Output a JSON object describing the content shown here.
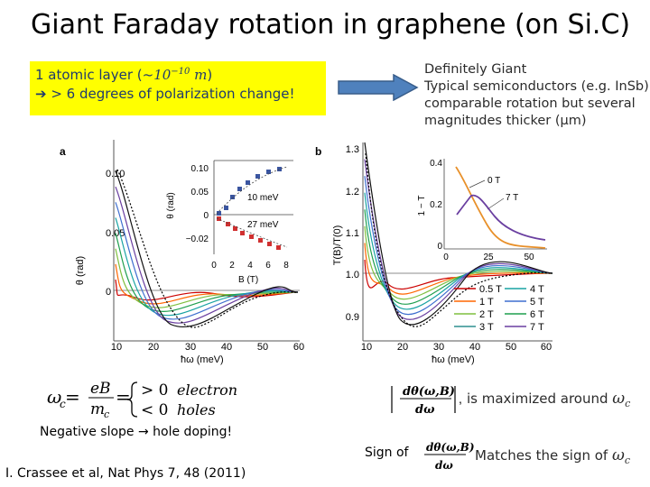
{
  "title": "Giant Faraday rotation in graphene (on Si.C)",
  "highlight": {
    "line1_prefix": "1 atomic layer (~",
    "line1_math": "10",
    "line1_exp": "−10",
    "line1_unit": " m",
    "line1_suffix": ")",
    "line2": "> 6 degrees of polarization change!"
  },
  "note_lines": [
    "Definitely Giant",
    "Typical semiconductors (e.g. InSb)",
    "comparable rotation but several",
    "magnitudes thicker (μm)"
  ],
  "panel_a": {
    "label": "a",
    "ylabel": "θ (rad)",
    "xlabel": "ħω (meV)",
    "yticks": [
      "0.10",
      "0.05",
      "0"
    ],
    "xticks": [
      "10",
      "20",
      "30",
      "40",
      "50",
      "60"
    ],
    "inset": {
      "ylabel": "θ (rad)",
      "xlabel": "B (T)",
      "yticks": [
        "0.10",
        "0.05",
        "0",
        "−0.02"
      ],
      "xticks": [
        "0",
        "2",
        "4",
        "6",
        "8"
      ],
      "label_10": "10 meV",
      "label_27": "27 meV"
    }
  },
  "panel_b": {
    "label": "b",
    "ylabel": "T(B)/T(0)",
    "xlabel": "ħω (meV)",
    "yticks": [
      "1.3",
      "1.2",
      "1.1",
      "1.0",
      "0.9"
    ],
    "xticks": [
      "10",
      "20",
      "30",
      "40",
      "50",
      "60"
    ],
    "legend": [
      "0.5 T",
      "4 T",
      "1 T",
      "5 T",
      "2 T",
      "6 T",
      "3 T",
      "7 T"
    ],
    "inset": {
      "ylabel": "1 − T",
      "yticks": [
        "0.4",
        "0.2",
        "0"
      ],
      "xticks": [
        "0",
        "25",
        "50"
      ],
      "label_0T": "0 T",
      "label_7T": "7 T"
    }
  },
  "colors": {
    "title_text": "#000000",
    "highlight_bg": "#ffff00",
    "highlight_text": "#1f3a6e",
    "arrow_fill": "#4f81bd",
    "arrow_stroke": "#385d8a",
    "series": [
      "#cc0000",
      "#ff6600",
      "#7fbf3f",
      "#1f9f4f",
      "#19a3a3",
      "#3f6fcf",
      "#6a3fa0",
      "#101010"
    ]
  },
  "equation": {
    "lhs": "ω",
    "lhs_sub": "c",
    "eq": " = ",
    "frac_num": "eB",
    "frac_den": "m",
    "frac_den_sub": "c",
    "case1": "> 0",
    "case2": "< 0",
    "word1": "electron",
    "word2": "holes"
  },
  "neg_slope": "Negative slope → hole doping!",
  "citation": "I. Crassee et al, Nat Phys 7, 48 (2011)",
  "derivative": {
    "num": "dθ(ω,B)",
    "den": "dω",
    "maximized": "is maximized around ",
    "omega": "ω",
    "omega_sub": "c"
  },
  "sign": {
    "sign_of": "Sign of",
    "matches": "Matches the sign of "
  }
}
